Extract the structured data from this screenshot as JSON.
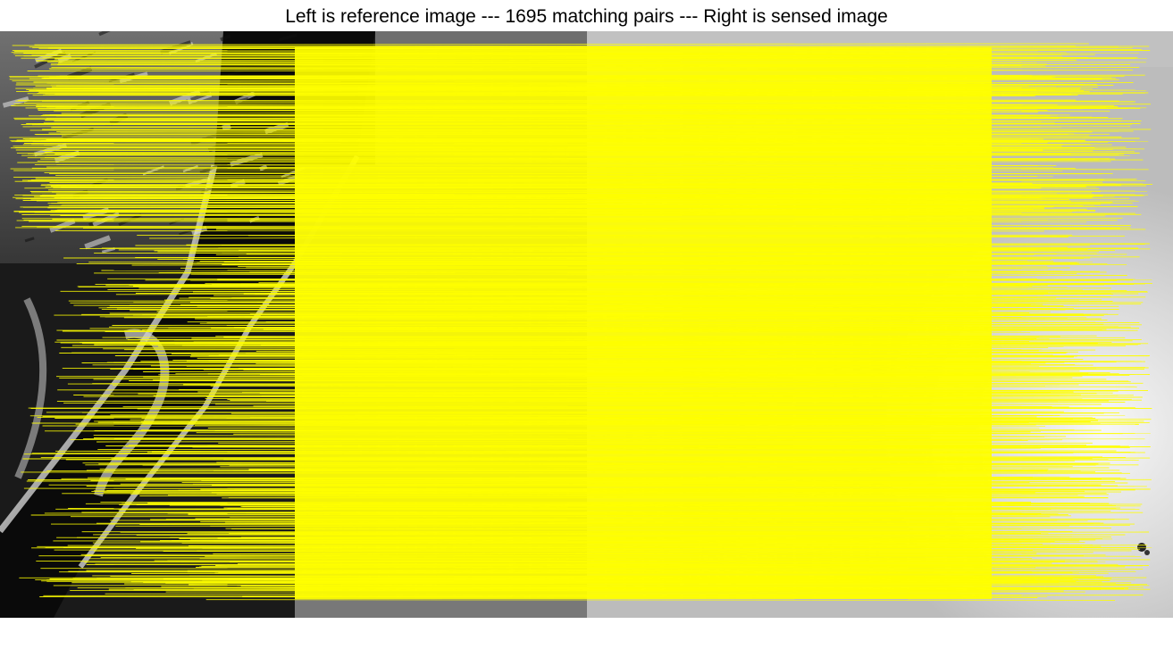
{
  "figure": {
    "title": "Left is reference image --- 1695 matching pairs --- Right is sensed image"
  },
  "colors": {
    "background": "#ffffff",
    "match_line": "#ffff00",
    "reference_dark": "#0b0b0b",
    "reference_light": "#d8d8d8",
    "sensed_base": "#bdbdbd",
    "sensed_bright": "#f4f4f4"
  },
  "panels": [
    {
      "name": "reference-image",
      "kind": "grayscale satellite image"
    },
    {
      "name": "sensed-image",
      "kind": "grayscale intensity image"
    }
  ],
  "matches": {
    "count": 1695,
    "icon": "yellow-correspondence-lines"
  }
}
